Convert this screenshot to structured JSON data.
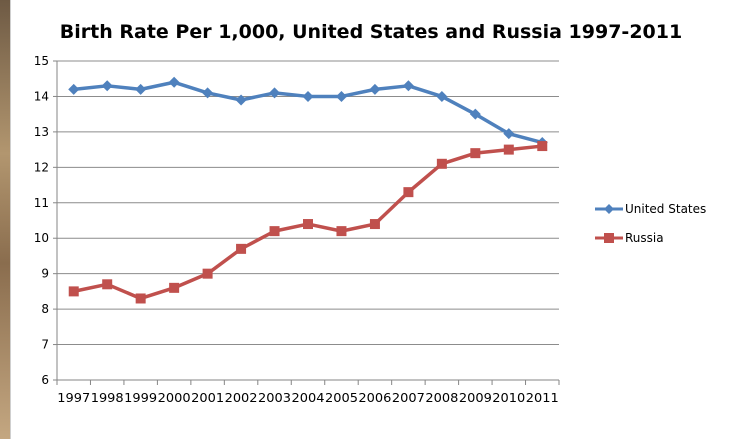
{
  "chart_data": {
    "type": "line",
    "title": "Birth Rate Per 1,000, United States and Russia 1997-2011",
    "xlabel": "",
    "ylabel": "",
    "categories": [
      "1997",
      "1998",
      "1999",
      "2000",
      "2001",
      "2002",
      "2003",
      "2004",
      "2005",
      "2006",
      "2007",
      "2008",
      "2009",
      "2010",
      "2011"
    ],
    "ylim": [
      6,
      15
    ],
    "yticks": [
      "6",
      "7",
      "8",
      "9",
      "10",
      "11",
      "12",
      "13",
      "14",
      "15"
    ],
    "grid": true,
    "legend_position": "right",
    "series": [
      {
        "name": "United States",
        "color": "#4f81bd",
        "marker": "diamond",
        "values": [
          14.2,
          14.3,
          14.2,
          14.4,
          14.1,
          13.9,
          14.1,
          14.0,
          14.0,
          14.2,
          14.3,
          14.0,
          13.5,
          12.95,
          12.7
        ]
      },
      {
        "name": "Russia",
        "color": "#c0504d",
        "marker": "square",
        "values": [
          8.5,
          8.7,
          8.3,
          8.6,
          9.0,
          9.7,
          10.2,
          10.4,
          10.2,
          10.4,
          11.3,
          12.1,
          12.4,
          12.5,
          12.6
        ]
      }
    ]
  }
}
